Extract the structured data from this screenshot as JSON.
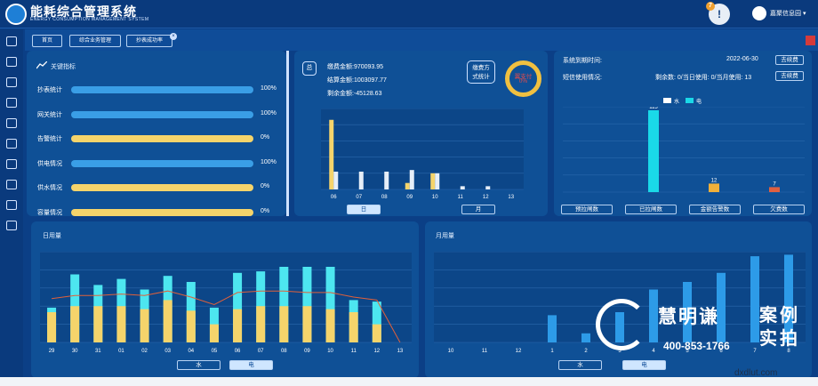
{
  "header": {
    "title": "能耗综合管理系统",
    "subtitle": "ENERGY CONSUMPTION MANAGEMENT SYSTEM",
    "alert_count": "7",
    "alert_symbol": "!",
    "user": "嘉聚信息园 ▾"
  },
  "sidebar": {
    "icons": [
      "menu-icon",
      "image-icon",
      "folder-icon",
      "settings-icon",
      "monitor-icon",
      "download-icon",
      "chart-line-icon",
      "document-icon",
      "grid-icon",
      "gallery-icon"
    ]
  },
  "nav": {
    "tabs": [
      "首页",
      "综合业务管理",
      "抄表成功率"
    ],
    "close": "×"
  },
  "kpi": {
    "title": "关键指标",
    "items": [
      {
        "label": "抄表统计",
        "pct": "100%",
        "value": 1.0,
        "color": "#3a9ee6"
      },
      {
        "label": "网关统计",
        "pct": "100%",
        "value": 1.0,
        "color": "#3a9ee6"
      },
      {
        "label": "告警统计",
        "pct": "0%",
        "value": 0,
        "color": "#f5d46b"
      },
      {
        "label": "供电情况",
        "pct": "100%",
        "value": 1.0,
        "color": "#3a9ee6"
      },
      {
        "label": "供水情况",
        "pct": "0%",
        "value": 0,
        "color": "#f5d46b"
      },
      {
        "label": "容量情况",
        "pct": "0%",
        "value": 0,
        "color": "#f5d46b"
      }
    ]
  },
  "payment": {
    "total_label": "总",
    "paid": "缴费金额:970093.95",
    "settled": "结算金额:1003097.77",
    "remaining": "剩余金额:-45128.63",
    "method_btn": "缴费方\n式统计",
    "donut_title": "翼支付",
    "donut_pct": "0%",
    "day_btn": "日",
    "month_btn": "月"
  },
  "payment_chart": {
    "type": "bar",
    "categories": [
      "06",
      "07",
      "08",
      "09",
      "10",
      "11",
      "12",
      "13"
    ],
    "series": [
      {
        "values": [
          86,
          0,
          0,
          8,
          20,
          0,
          0,
          0
        ],
        "color": "#f5d46b"
      },
      {
        "values": [
          22,
          22,
          22,
          24,
          20,
          4,
          4,
          0
        ],
        "color": "#e6eef8"
      }
    ],
    "ylim": [
      0,
      100
    ]
  },
  "sms": {
    "expire_label": "系统到期时间:",
    "expire_date": "2022-06-30",
    "renew": "去续费",
    "sms_label": "短信使用情况:",
    "sms_info": "剩余数: 0/当日使用: 0/当月使用: 13",
    "renew2": "去续费",
    "legend": [
      "水",
      "电"
    ],
    "buttons": [
      "预拉闸数",
      "已拉闸数",
      "金额告警数",
      "欠费数"
    ]
  },
  "sms_chart": {
    "type": "bar",
    "categories": [
      "预拉闸数",
      "已拉闸数",
      "金额告警数",
      "欠费数"
    ],
    "values": [
      0,
      115,
      12,
      7
    ],
    "colors": [
      "#1ad9e8",
      "#1ad9e8",
      "#f0b03a",
      "#e06040"
    ],
    "ylim": [
      0,
      120
    ]
  },
  "daily": {
    "title": "日用量",
    "water_btn": "水",
    "elec_btn": "电"
  },
  "daily_chart": {
    "type": "bar",
    "categories": [
      "29",
      "30",
      "31",
      "01",
      "02",
      "03",
      "04",
      "05",
      "06",
      "07",
      "08",
      "09",
      "10",
      "11",
      "12",
      "13"
    ],
    "series": [
      {
        "name": "",
        "values": [
          20,
          24,
          24,
          24,
          22,
          28,
          21,
          12,
          22,
          24,
          24,
          24,
          22,
          20,
          12,
          0
        ],
        "color": "#f5d46b"
      },
      {
        "name": "",
        "values": [
          23,
          45,
          38,
          42,
          35,
          44,
          40,
          23,
          46,
          47,
          50,
          50,
          50,
          28,
          27,
          0
        ],
        "color": "#4de6f0"
      }
    ],
    "line": [
      29,
      31,
      31,
      32,
      31,
      34,
      30,
      25,
      33,
      34,
      34,
      33,
      33,
      30,
      28,
      0
    ],
    "ylim": [
      0,
      60
    ]
  },
  "monthly": {
    "title": "月用量",
    "water_btn": "水",
    "elec_btn": "电"
  },
  "monthly_chart": {
    "type": "bar",
    "categories": [
      "10",
      "11",
      "12",
      "1",
      "2",
      "3",
      "4",
      "5",
      "6",
      "7",
      "8"
    ],
    "values": [
      0,
      0,
      0,
      18,
      6,
      20,
      35,
      40,
      46,
      57,
      58
    ],
    "color": "#2d9be8",
    "ylim": [
      0,
      60
    ]
  },
  "watermark": {
    "name": "慧明谦",
    "phone": "400-853-1766",
    "case": "案例\n实拍",
    "site": "dxdlut.com"
  }
}
